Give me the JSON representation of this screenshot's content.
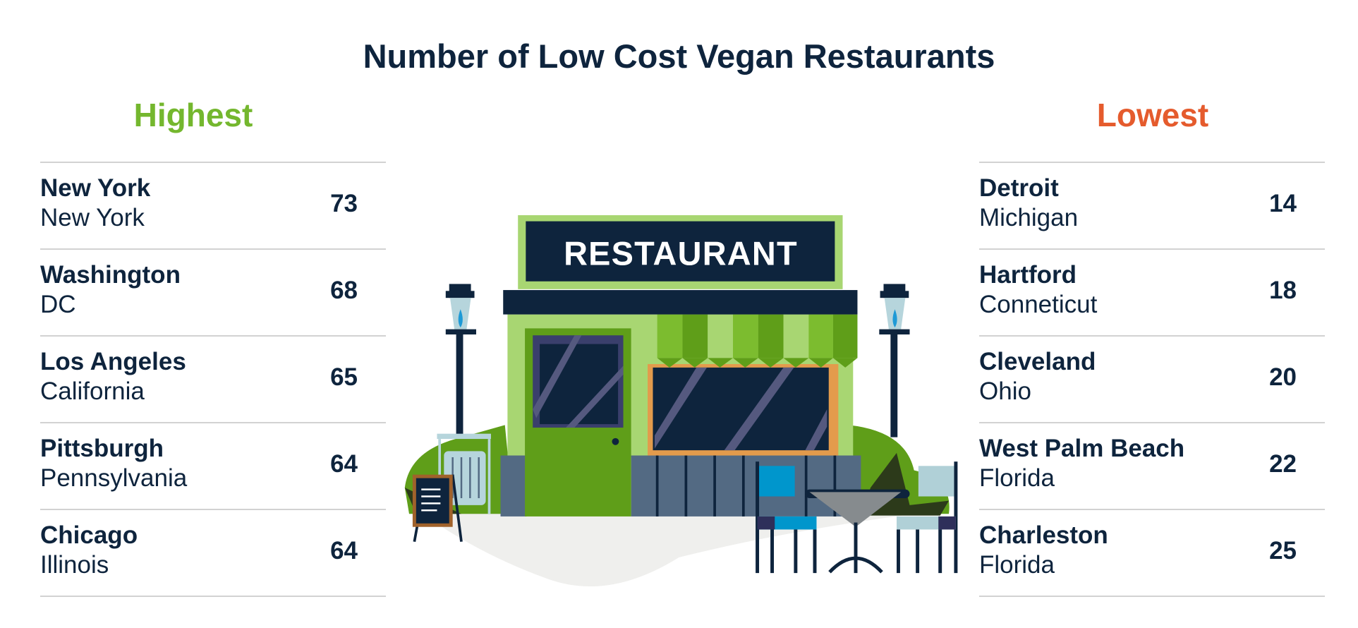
{
  "chart_data": {
    "type": "table",
    "title": "Number of Low Cost Vegan Restaurants",
    "tables": [
      {
        "heading": "Highest",
        "color": "#74b72e",
        "rows": [
          {
            "city": "New York",
            "state": "New York",
            "value": 73
          },
          {
            "city": "Washington",
            "state": "DC",
            "value": 68
          },
          {
            "city": "Los Angeles",
            "state": "California",
            "value": 65
          },
          {
            "city": "Pittsburgh",
            "state": "Pennsylvania",
            "value": 64
          },
          {
            "city": "Chicago",
            "state": "Illinois",
            "value": 64
          }
        ]
      },
      {
        "heading": "Lowest",
        "color": "#e55b2d",
        "rows": [
          {
            "city": "Detroit",
            "state": "Michigan",
            "value": 14
          },
          {
            "city": "Hartford",
            "state": "Conneticut",
            "value": 18
          },
          {
            "city": "Cleveland",
            "state": "Ohio",
            "value": 20
          },
          {
            "city": "West Palm Beach",
            "state": "Florida",
            "value": 22
          },
          {
            "city": "Charleston",
            "state": "Florida",
            "value": 25
          }
        ]
      }
    ]
  },
  "illustration": {
    "sign_text": "RESTAURANT"
  }
}
